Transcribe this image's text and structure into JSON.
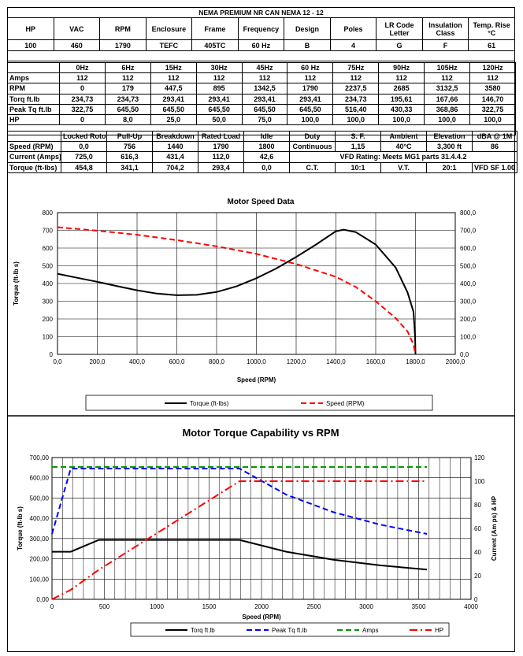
{
  "header_table": {
    "title": "NEMA PREMIUM NR CAN NEMA 12 - 12",
    "headers": [
      "HP",
      "VAC",
      "RPM",
      "Enclosure",
      "Frame",
      "Frequency",
      "Design",
      "Poles",
      "LR Code Letter",
      "Insulation Class",
      "Temp. Rise °C"
    ],
    "values": [
      "100",
      "460",
      "1790",
      "TEFC",
      "405TC",
      "60 Hz",
      "B",
      "4",
      "G",
      "F",
      "61"
    ]
  },
  "freq_table": {
    "columns": [
      "0Hz",
      "6Hz",
      "15Hz",
      "30Hz",
      "45Hz",
      "60 Hz",
      "75Hz",
      "90Hz",
      "105Hz",
      "120Hz"
    ],
    "rows": [
      {
        "label": "Amps",
        "values": [
          "112",
          "112",
          "112",
          "112",
          "112",
          "112",
          "112",
          "112",
          "112",
          "112"
        ]
      },
      {
        "label": "RPM",
        "values": [
          "0",
          "179",
          "447,5",
          "895",
          "1342,5",
          "1790",
          "2237,5",
          "2685",
          "3132,5",
          "3580"
        ]
      },
      {
        "label": "Torq ft.lb",
        "values": [
          "234,73",
          "234,73",
          "293,41",
          "293,41",
          "293,41",
          "293,41",
          "234,73",
          "195,61",
          "167,66",
          "146,70"
        ]
      },
      {
        "label": "Peak Tq ft.lb",
        "values": [
          "322,75",
          "645,50",
          "645,50",
          "645,50",
          "645,50",
          "645,50",
          "516,40",
          "430,33",
          "368,86",
          "322,75"
        ]
      },
      {
        "label": "HP",
        "values": [
          "0",
          "8,0",
          "25,0",
          "50,0",
          "75,0",
          "100,0",
          "100,0",
          "100,0",
          "100,0",
          "100,0"
        ]
      }
    ]
  },
  "perf_table": {
    "columns": [
      "Locked Rotor",
      "Pull-Up",
      "Breakdown",
      "Rated Load",
      "Idle"
    ],
    "rows": [
      {
        "label": "Speed (RPM)",
        "values": [
          "0,0",
          "756",
          "1440",
          "1790",
          "1800"
        ]
      },
      {
        "label": "Current (Amps)",
        "values": [
          "725,0",
          "616,3",
          "431,4",
          "112,0",
          "42,6"
        ]
      },
      {
        "label": "Torque (ft-lbs)",
        "values": [
          "454,8",
          "341,1",
          "704,2",
          "293,4",
          "0,0"
        ]
      }
    ],
    "right_headers": [
      "Duty",
      "S. F.",
      "Ambient",
      "Elevation",
      "dBA @ 1M"
    ],
    "right_values": [
      "Continuous",
      "1,15",
      "40°C",
      "3,300 ft",
      "86"
    ],
    "vfd_rating": "VFD Rating: Meets MG1 parts 31.4.4.2",
    "vfd_values": [
      "C.T.",
      "10:1",
      "V.T.",
      "20:1",
      "VFD SF 1.00"
    ]
  },
  "chart_data": [
    {
      "type": "line",
      "title": "Motor Speed Data",
      "xlabel": "Speed (RPM)",
      "ylabel": "Torque (ft-lb s)",
      "xlim": [
        0,
        2000
      ],
      "ylim": [
        0,
        800
      ],
      "y2lim": [
        0,
        800
      ],
      "xticks": [
        "0,0",
        "200,0",
        "400,0",
        "600,0",
        "800,0",
        "1000,0",
        "1200,0",
        "1400,0",
        "1600,0",
        "1800,0",
        "2000,0"
      ],
      "yticks": [
        "0",
        "100",
        "200",
        "300",
        "400",
        "500",
        "600",
        "700",
        "800"
      ],
      "y2ticks": [
        "0,0",
        "100,0",
        "200,0",
        "300,0",
        "400,0",
        "500,0",
        "600,0",
        "700,0",
        "800,0"
      ],
      "legend_position": "bottom",
      "series": [
        {
          "name": "Torque (ft-lbs)",
          "color": "#000000",
          "style": "solid",
          "points": [
            [
              0,
              455
            ],
            [
              100,
              432
            ],
            [
              200,
              410
            ],
            [
              300,
              385
            ],
            [
              400,
              362
            ],
            [
              500,
              343
            ],
            [
              600,
              334
            ],
            [
              700,
              336
            ],
            [
              800,
              352
            ],
            [
              900,
              384
            ],
            [
              1000,
              430
            ],
            [
              1100,
              485
            ],
            [
              1200,
              550
            ],
            [
              1300,
              620
            ],
            [
              1400,
              695
            ],
            [
              1440,
              704
            ],
            [
              1500,
              690
            ],
            [
              1600,
              620
            ],
            [
              1700,
              490
            ],
            [
              1760,
              350
            ],
            [
              1790,
              240
            ],
            [
              1798,
              100
            ],
            [
              1800,
              0
            ]
          ]
        },
        {
          "name": "Speed (RPM)",
          "color": "#ff0000",
          "style": "dashed",
          "points": [
            [
              0,
              718
            ],
            [
              200,
              698
            ],
            [
              400,
              675
            ],
            [
              600,
              645
            ],
            [
              800,
              610
            ],
            [
              1000,
              567
            ],
            [
              1200,
              510
            ],
            [
              1400,
              438
            ],
            [
              1500,
              380
            ],
            [
              1600,
              300
            ],
            [
              1700,
              205
            ],
            [
              1760,
              130
            ],
            [
              1790,
              55
            ],
            [
              1800,
              0
            ]
          ]
        }
      ]
    },
    {
      "type": "line",
      "title": "Motor Torque Capability vs RPM",
      "xlabel": "Speed (RPM)",
      "ylabel": "Torque (ft-lb s)",
      "y2label": "Current (Am ps) & HP",
      "xlim": [
        0,
        4000
      ],
      "ylim": [
        0,
        700
      ],
      "y2lim": [
        0,
        120
      ],
      "xticks": [
        "0",
        "500",
        "1000",
        "1500",
        "2000",
        "2500",
        "3000",
        "3500",
        "4000"
      ],
      "yticks": [
        "0,00",
        "100,00",
        "200,00",
        "300,00",
        "400,00",
        "500,00",
        "600,00",
        "700,00"
      ],
      "y2ticks": [
        "0",
        "20",
        "40",
        "60",
        "80",
        "100",
        "120"
      ],
      "legend_position": "bottom",
      "series": [
        {
          "name": "Torq ft.lb",
          "color": "#000000",
          "style": "solid",
          "axis": "left",
          "x": [
            0,
            179,
            447.5,
            895,
            1342.5,
            1790,
            2237.5,
            2685,
            3132.5,
            3580
          ],
          "y": [
            234.73,
            234.73,
            293.41,
            293.41,
            293.41,
            293.41,
            234.73,
            195.61,
            167.66,
            146.7
          ]
        },
        {
          "name": "Peak Tq ft.lb",
          "color": "#0000ff",
          "style": "dashed",
          "axis": "left",
          "x": [
            0,
            179,
            447.5,
            895,
            1342.5,
            1790,
            2237.5,
            2685,
            3132.5,
            3580
          ],
          "y": [
            322.75,
            645.5,
            645.5,
            645.5,
            645.5,
            645.5,
            516.4,
            430.33,
            368.86,
            322.75
          ]
        },
        {
          "name": "Amps",
          "color": "#009900",
          "style": "dashed",
          "axis": "right",
          "x": [
            0,
            179,
            447.5,
            895,
            1342.5,
            1790,
            2237.5,
            2685,
            3132.5,
            3580
          ],
          "y": [
            112,
            112,
            112,
            112,
            112,
            112,
            112,
            112,
            112,
            112
          ]
        },
        {
          "name": "HP",
          "color": "#ff0000",
          "style": "dashdot",
          "axis": "right",
          "x": [
            0,
            179,
            447.5,
            895,
            1342.5,
            1790,
            2237.5,
            2685,
            3132.5,
            3580
          ],
          "y": [
            0,
            8,
            25,
            50,
            75,
            100,
            100,
            100,
            100,
            100
          ]
        }
      ]
    }
  ]
}
